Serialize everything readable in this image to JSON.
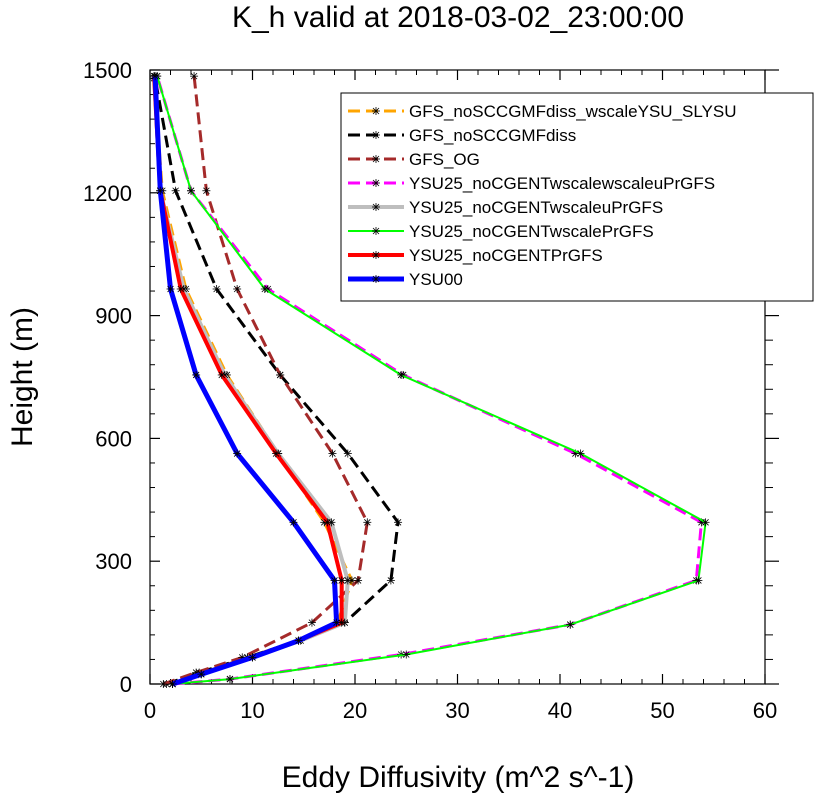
{
  "chart_data": {
    "type": "line",
    "title": "K_h valid at 2018-03-02_23:00:00",
    "xlabel": "Eddy Diffusivity (m^2 s^-1)",
    "ylabel": "Height (m)",
    "xlim": [
      0,
      60
    ],
    "ylim": [
      0,
      1500
    ],
    "xticks": [
      "0",
      "10",
      "20",
      "30",
      "40",
      "50",
      "60"
    ],
    "yticks": [
      "0",
      "300",
      "600",
      "900",
      "1200",
      "1500"
    ],
    "legend_position": "top-right",
    "grid": false,
    "series": [
      {
        "name": "GFS_noSCCGMFdiss_wscaleYSU_SLYSU",
        "color": "#ffa500",
        "dash": "dashed",
        "width": 3,
        "points": [
          [
            2.2,
            0
          ],
          [
            4.7,
            24
          ],
          [
            9.5,
            65
          ],
          [
            14.5,
            106
          ],
          [
            18.3,
            150
          ],
          [
            19.7,
            253
          ],
          [
            17.0,
            395
          ],
          [
            12.5,
            563
          ],
          [
            7.5,
            755
          ],
          [
            3.5,
            965
          ],
          [
            1.2,
            1205
          ],
          [
            0.4,
            1480
          ]
        ]
      },
      {
        "name": "GFS_noSCCGMFdiss",
        "color": "#000000",
        "dash": "dashed",
        "width": 3,
        "points": [
          [
            1.6,
            0
          ],
          [
            4.8,
            28
          ],
          [
            9.5,
            65
          ],
          [
            14.5,
            106
          ],
          [
            19.0,
            150
          ],
          [
            23.5,
            253
          ],
          [
            24.2,
            395
          ],
          [
            19.3,
            563
          ],
          [
            12.7,
            755
          ],
          [
            6.5,
            965
          ],
          [
            2.5,
            1205
          ],
          [
            0.5,
            1480
          ]
        ]
      },
      {
        "name": "GFS_OG",
        "color": "#a52a2a",
        "dash": "dashed",
        "width": 3,
        "points": [
          [
            1.3,
            0
          ],
          [
            4.5,
            28
          ],
          [
            9.0,
            65
          ],
          [
            15.8,
            150
          ],
          [
            20.3,
            253
          ],
          [
            21.2,
            395
          ],
          [
            17.8,
            563
          ],
          [
            12.7,
            755
          ],
          [
            8.5,
            965
          ],
          [
            5.5,
            1205
          ],
          [
            4.3,
            1485
          ]
        ]
      },
      {
        "name": "YSU25_noCGENTwscalewscaleuPrGFS",
        "color": "#ff00ff",
        "dash": "dashed",
        "width": 3,
        "points": [
          [
            2.2,
            0
          ],
          [
            7.8,
            12
          ],
          [
            24.5,
            72
          ],
          [
            41.0,
            145
          ],
          [
            53.3,
            253
          ],
          [
            53.8,
            395
          ],
          [
            41.5,
            563
          ],
          [
            24.7,
            755
          ],
          [
            11.5,
            965
          ],
          [
            4.0,
            1205
          ],
          [
            0.7,
            1485
          ]
        ]
      },
      {
        "name": "YSU25_noCGENTwscaleuPrGFS",
        "color": "#bebebe",
        "dash": "solid",
        "width": 4,
        "points": [
          [
            2.2,
            0
          ],
          [
            5.0,
            24
          ],
          [
            10.0,
            65
          ],
          [
            14.7,
            106
          ],
          [
            19.0,
            150
          ],
          [
            19.3,
            253
          ],
          [
            17.7,
            395
          ],
          [
            12.5,
            563
          ],
          [
            7.3,
            755
          ],
          [
            3.3,
            965
          ],
          [
            1.0,
            1205
          ],
          [
            0.4,
            1485
          ]
        ]
      },
      {
        "name": "YSU25_noCGENTwscalePrGFS",
        "color": "#00ff00",
        "dash": "solid",
        "width": 2,
        "points": [
          [
            2.2,
            0
          ],
          [
            7.8,
            12
          ],
          [
            25.0,
            72
          ],
          [
            41.0,
            145
          ],
          [
            53.5,
            253
          ],
          [
            54.2,
            395
          ],
          [
            42.0,
            563
          ],
          [
            24.5,
            755
          ],
          [
            11.2,
            965
          ],
          [
            4.0,
            1205
          ],
          [
            0.7,
            1485
          ]
        ]
      },
      {
        "name": "YSU25_noCGENTPrGFS",
        "color": "#ff0000",
        "dash": "solid",
        "width": 4,
        "points": [
          [
            2.2,
            0
          ],
          [
            5.0,
            24
          ],
          [
            10.0,
            65
          ],
          [
            14.5,
            106
          ],
          [
            18.7,
            150
          ],
          [
            18.7,
            253
          ],
          [
            17.3,
            395
          ],
          [
            12.3,
            563
          ],
          [
            7.0,
            755
          ],
          [
            3.0,
            965
          ],
          [
            1.0,
            1205
          ],
          [
            0.4,
            1485
          ]
        ]
      },
      {
        "name": "YSU00",
        "color": "#0000ff",
        "dash": "solid",
        "width": 5,
        "points": [
          [
            2.2,
            0
          ],
          [
            5.0,
            24
          ],
          [
            10.0,
            65
          ],
          [
            14.5,
            106
          ],
          [
            18.2,
            150
          ],
          [
            18.0,
            253
          ],
          [
            14.0,
            395
          ],
          [
            8.5,
            563
          ],
          [
            4.5,
            755
          ],
          [
            2.0,
            965
          ],
          [
            1.0,
            1205
          ],
          [
            0.5,
            1485
          ]
        ]
      }
    ]
  }
}
